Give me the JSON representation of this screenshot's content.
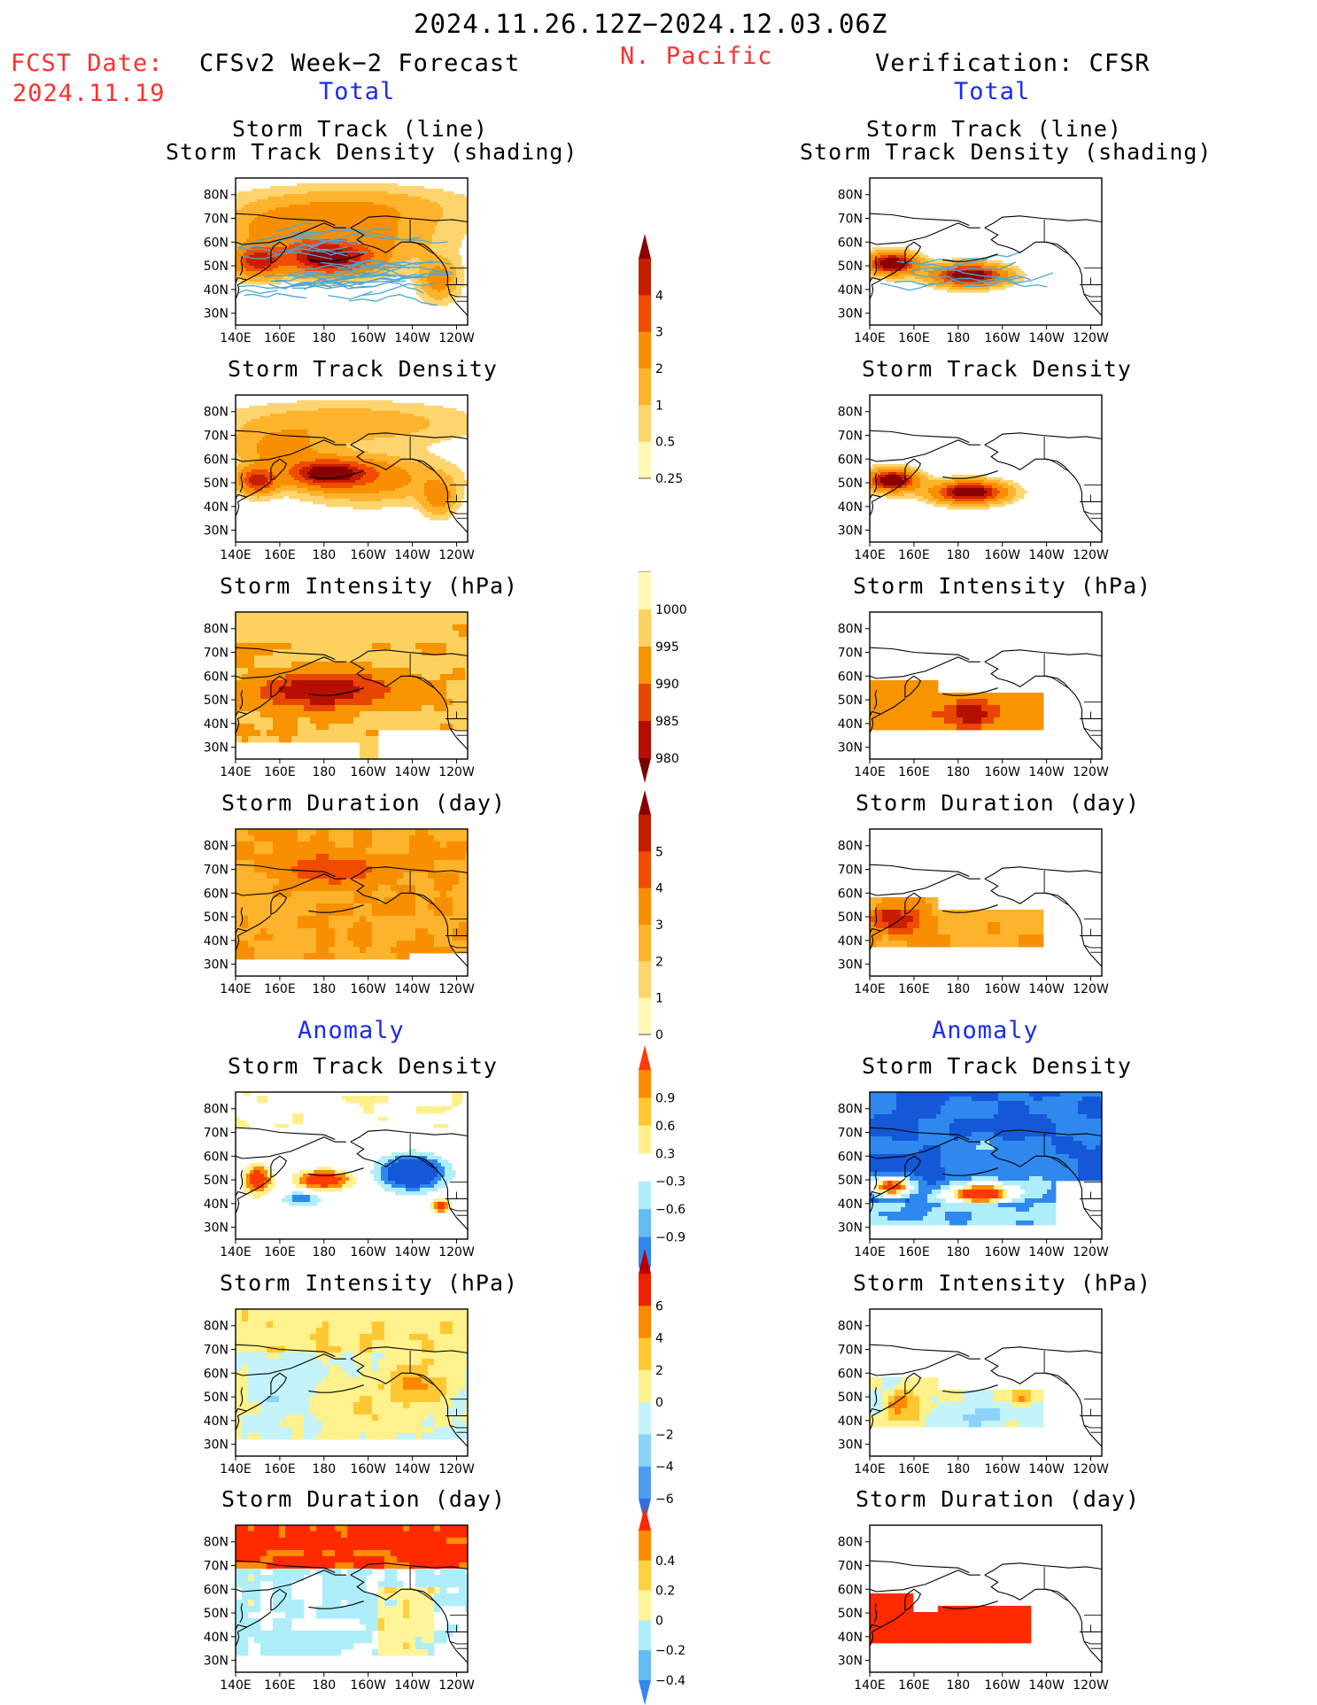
{
  "header": {
    "period": "2024.11.26.12Z−2024.12.03.06Z",
    "fcst_label": "FCST Date:",
    "fcst_date": "2024.11.19",
    "region": "N. Pacific",
    "left_model": "CFSv2 Week−2 Forecast",
    "right_model": "Verification: CFSR",
    "total_left": "Total",
    "total_right": "Total",
    "anomaly_left": "Anomaly",
    "anomaly_right": "Anomaly"
  },
  "panel_titles": {
    "track_line": "Storm Track (line)",
    "track_shading": "Storm Track Density (shading)",
    "density": "Storm Track Density",
    "intensity": "Storm Intensity (hPa)",
    "duration": "Storm Duration (day)"
  },
  "axes": {
    "x_ticks": [
      "140E",
      "160E",
      "180",
      "160W",
      "140W",
      "120W"
    ],
    "y_ticks": [
      "80N",
      "70N",
      "60N",
      "50N",
      "40N",
      "30N"
    ]
  },
  "colorbars": {
    "density": {
      "labels": [
        "4",
        "3",
        "2",
        "1",
        "0.5",
        "0.25"
      ],
      "colors": [
        "#8b0000",
        "#c81e00",
        "#ef4c00",
        "#f88f00",
        "#fdb32c",
        "#fed46e",
        "#fff8b4"
      ]
    },
    "intensity": {
      "labels": [
        "1000",
        "995",
        "990",
        "985",
        "980"
      ],
      "colors": [
        "#fff8b4",
        "#fdd15d",
        "#f79400",
        "#e84500",
        "#b40f00",
        "#7a0000"
      ]
    },
    "duration": {
      "labels": [
        "5",
        "4",
        "3",
        "2",
        "1",
        "0"
      ],
      "colors": [
        "#8b0000",
        "#c81e00",
        "#ef4c00",
        "#f88f00",
        "#fdb32c",
        "#fed46e",
        "#fff8b4"
      ]
    },
    "density_anom": {
      "labels": [
        "0.9",
        "0.6",
        "0.3",
        "−0.3",
        "−0.6",
        "−0.9"
      ],
      "colors": [
        "#ff3b00",
        "#ff8c00",
        "#ffc832",
        "#fff08c",
        "#ffffff",
        "#aeeefa",
        "#63bdf5",
        "#2f88ee",
        "#1458d8"
      ]
    },
    "intensity_anom": {
      "labels": [
        "6",
        "4",
        "2",
        "0",
        "−2",
        "−4",
        "−6"
      ],
      "colors": [
        "#b80000",
        "#ee2200",
        "#ff8800",
        "#ffc832",
        "#fff18c",
        "#c4f3fb",
        "#8cd4f7",
        "#4c9cf0",
        "#2f6fe5"
      ]
    },
    "duration_anom": {
      "labels": [
        "0.4",
        "0.2",
        "0",
        "−0.2",
        "−0.4"
      ],
      "colors": [
        "#ff2a00",
        "#ff8c00",
        "#ffd040",
        "#fff49a",
        "#aeeefa",
        "#63bdf5",
        "#2f88ee"
      ]
    }
  },
  "chart_data": [
    {
      "type": "heatmap",
      "name": "forecast total storm track density (shading) with tracks (line)",
      "column": "CFSv2 Week-2 Forecast",
      "row": 1,
      "units": "density",
      "levels": [
        0.25,
        0.5,
        1,
        2,
        3,
        4
      ],
      "max_region": "45N-60N, 165E-160W",
      "max_value": 4
    },
    {
      "type": "heatmap",
      "name": "forecast total storm track density",
      "column": "CFSv2 Week-2 Forecast",
      "row": 2,
      "levels": [
        0.25,
        0.5,
        1,
        2,
        3,
        4
      ],
      "max_region": "50N-57N, 170E-165W"
    },
    {
      "type": "heatmap",
      "name": "forecast total storm intensity",
      "column": "CFSv2 Week-2 Forecast",
      "row": 3,
      "units": "hPa",
      "levels": [
        1000,
        995,
        990,
        985,
        980
      ],
      "min_region": "45N-60N, 155E-150W"
    },
    {
      "type": "heatmap",
      "name": "forecast total storm duration",
      "column": "CFSv2 Week-2 Forecast",
      "row": 4,
      "units": "day",
      "levels": [
        0,
        1,
        2,
        3,
        4,
        5
      ]
    },
    {
      "type": "heatmap",
      "name": "verification total storm track density (shading) with tracks (line)",
      "column": "Verification: CFSR",
      "row": 1,
      "levels": [
        0.25,
        0.5,
        1,
        2,
        3,
        4
      ],
      "max_region": "two centres: 50N 145E and 45N 175W"
    },
    {
      "type": "heatmap",
      "name": "verification total storm track density",
      "column": "Verification: CFSR",
      "row": 2,
      "levels": [
        0.25,
        0.5,
        1,
        2,
        3,
        4
      ]
    },
    {
      "type": "heatmap",
      "name": "verification total storm intensity",
      "column": "Verification: CFSR",
      "row": 3,
      "units": "hPa",
      "levels": [
        1000,
        995,
        990,
        985,
        980
      ]
    },
    {
      "type": "heatmap",
      "name": "verification total storm duration",
      "column": "Verification: CFSR",
      "row": 4,
      "units": "day",
      "levels": [
        0,
        1,
        2,
        3,
        4,
        5
      ]
    },
    {
      "type": "heatmap",
      "name": "forecast anomaly storm track density",
      "column": "CFSv2 Week-2 Forecast",
      "row": 5,
      "levels": [
        -0.9,
        -0.6,
        -0.3,
        0.3,
        0.6,
        0.9
      ]
    },
    {
      "type": "heatmap",
      "name": "forecast anomaly storm intensity",
      "column": "CFSv2 Week-2 Forecast",
      "row": 6,
      "units": "hPa",
      "levels": [
        -6,
        -4,
        -2,
        0,
        2,
        4,
        6
      ]
    },
    {
      "type": "heatmap",
      "name": "forecast anomaly storm duration",
      "column": "CFSv2 Week-2 Forecast",
      "row": 7,
      "units": "day",
      "levels": [
        -0.4,
        -0.2,
        0,
        0.2,
        0.4
      ]
    },
    {
      "type": "heatmap",
      "name": "verification anomaly storm track density",
      "column": "Verification: CFSR",
      "row": 5,
      "levels": [
        -0.9,
        -0.6,
        -0.3,
        0.3,
        0.6,
        0.9
      ]
    },
    {
      "type": "heatmap",
      "name": "verification anomaly storm intensity",
      "column": "Verification: CFSR",
      "row": 6,
      "units": "hPa",
      "levels": [
        -6,
        -4,
        -2,
        0,
        2,
        4,
        6
      ]
    },
    {
      "type": "heatmap",
      "name": "verification anomaly storm duration",
      "column": "Verification: CFSR",
      "row": 7,
      "units": "day",
      "levels": [
        -0.4,
        -0.2,
        0,
        0.2,
        0.4
      ]
    }
  ]
}
